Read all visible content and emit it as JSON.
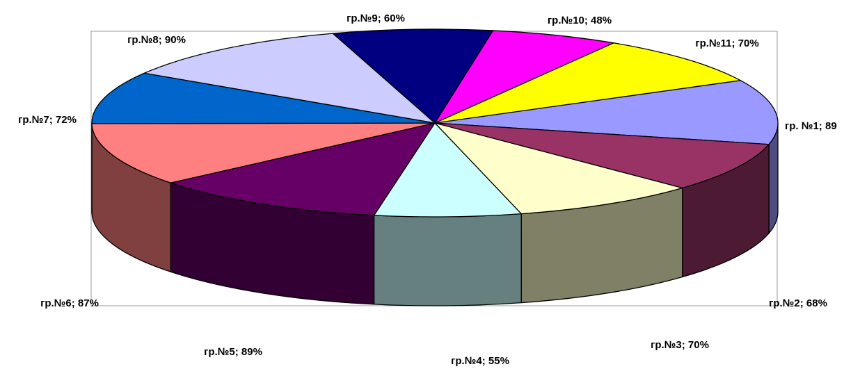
{
  "chart_data": {
    "type": "pie3d",
    "categories": [
      "гр. №1; 89",
      "гр.№2; 68%",
      "гр.№3; 70%",
      "гр.№4; 55%",
      "гр.№5; 89%",
      "гр.№6; 87%",
      "гр.№7; 72%",
      "гр.№8; 90%",
      "гр.№9; 60%",
      "гр.№10; 48%",
      "гр.№11; 70%"
    ],
    "values": [
      89,
      68,
      70,
      55,
      89,
      87,
      72,
      90,
      60,
      48,
      70
    ],
    "colors": [
      "#9999ff",
      "#993366",
      "#ffffcc",
      "#ccffff",
      "#660066",
      "#ff8080",
      "#0066cc",
      "#ccccff",
      "#000080",
      "#ff00ff",
      "#ffff00"
    ]
  }
}
